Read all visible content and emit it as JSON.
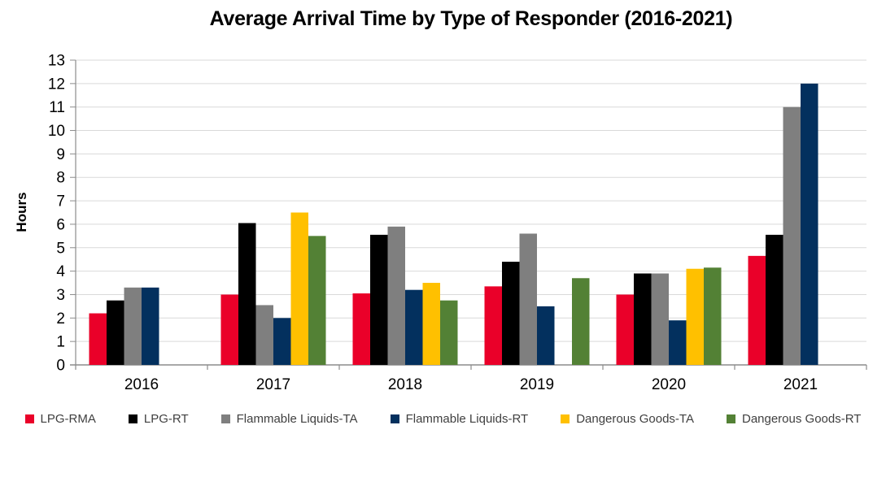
{
  "chart_data": {
    "type": "bar",
    "title": "Average Arrival Time by Type of Responder (2016-2021)",
    "xlabel": "",
    "ylabel": "Hours",
    "ylim": [
      0,
      13
    ],
    "ytick_step": 1,
    "grid": true,
    "legend_position": "bottom",
    "categories": [
      "2016",
      "2017",
      "2018",
      "2019",
      "2020",
      "2021"
    ],
    "series": [
      {
        "name": "LPG-RMA",
        "color": "#EA0029",
        "values": [
          2.2,
          3.0,
          3.05,
          3.35,
          3.0,
          4.65
        ]
      },
      {
        "name": "LPG-RT",
        "color": "#000000",
        "values": [
          2.75,
          6.05,
          5.55,
          4.4,
          3.9,
          5.55
        ]
      },
      {
        "name": "Flammable Liquids-TA",
        "color": "#7F7F7F",
        "values": [
          3.3,
          2.55,
          5.9,
          5.6,
          3.9,
          11.0
        ]
      },
      {
        "name": "Flammable Liquids-RT",
        "color": "#03305E",
        "values": [
          3.3,
          2.0,
          3.2,
          2.5,
          1.9,
          12.0
        ]
      },
      {
        "name": "Dangerous Goods-TA",
        "color": "#FFC000",
        "values": [
          null,
          6.5,
          3.5,
          null,
          4.1,
          null
        ]
      },
      {
        "name": "Dangerous Goods-RT",
        "color": "#538135",
        "values": [
          null,
          5.5,
          2.75,
          3.7,
          4.15,
          null
        ]
      }
    ],
    "colors": {
      "gridline": "#D9D9D9",
      "axis": "#8C8C8C",
      "tick_label": "#000000",
      "legend_text": "#3F3F3F"
    }
  }
}
